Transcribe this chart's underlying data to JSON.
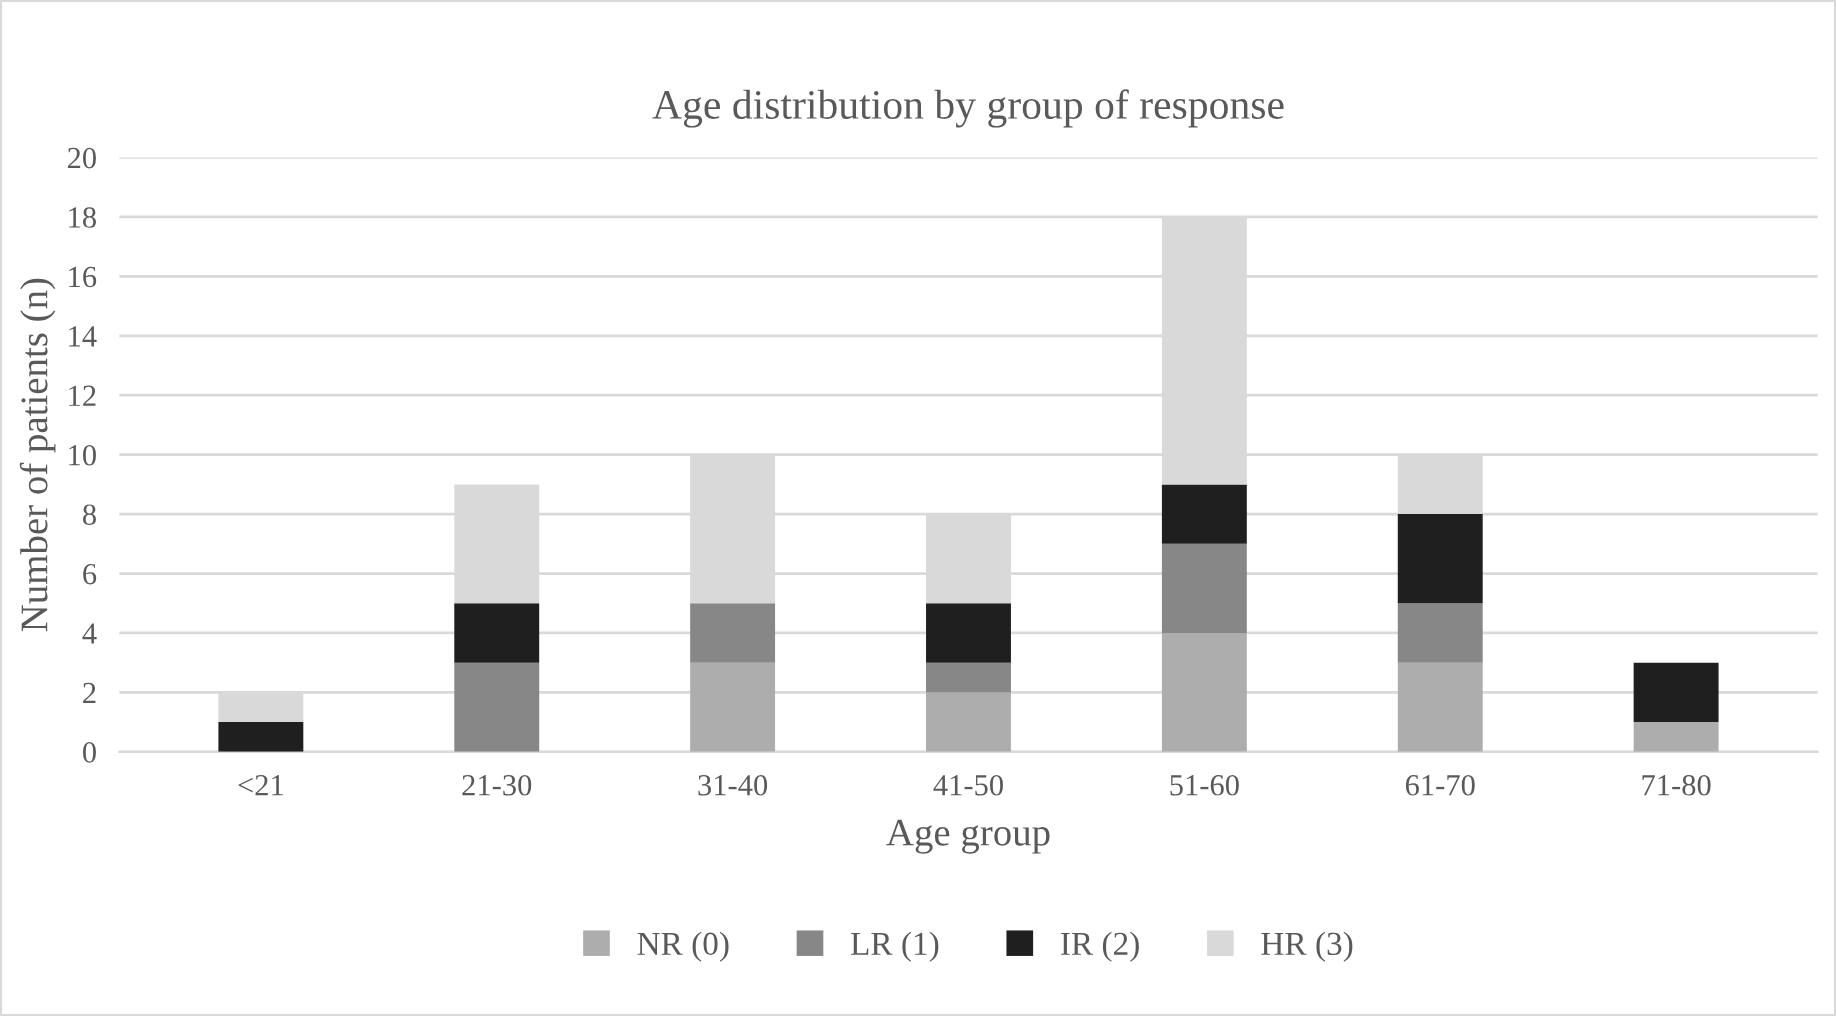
{
  "chart_data": {
    "type": "bar",
    "title": "Age distribution by group of response",
    "xlabel": "Age group",
    "ylabel": "Number of patients (n)",
    "categories": [
      "<21",
      "21-30",
      "31-40",
      "41-50",
      "51-60",
      "61-70",
      "71-80"
    ],
    "stacked": true,
    "series": [
      {
        "name": "NR (0)",
        "color": "#adadad",
        "values": [
          0,
          0,
          3,
          2,
          4,
          3,
          1
        ]
      },
      {
        "name": "LR (1)",
        "color": "#878787",
        "values": [
          0,
          3,
          2,
          1,
          3,
          2,
          0
        ]
      },
      {
        "name": "IR (2)",
        "color": "#1f1f1f",
        "values": [
          1,
          2,
          0,
          2,
          2,
          3,
          2
        ]
      },
      {
        "name": "HR (3)",
        "color": "#d9d9d9",
        "values": [
          1,
          4,
          5,
          3,
          9,
          2,
          0
        ]
      }
    ],
    "ylim": [
      0,
      20
    ],
    "yticks": [
      0,
      2,
      4,
      6,
      8,
      10,
      12,
      14,
      16,
      18,
      20
    ],
    "grid": "y",
    "legend": "bottom"
  }
}
